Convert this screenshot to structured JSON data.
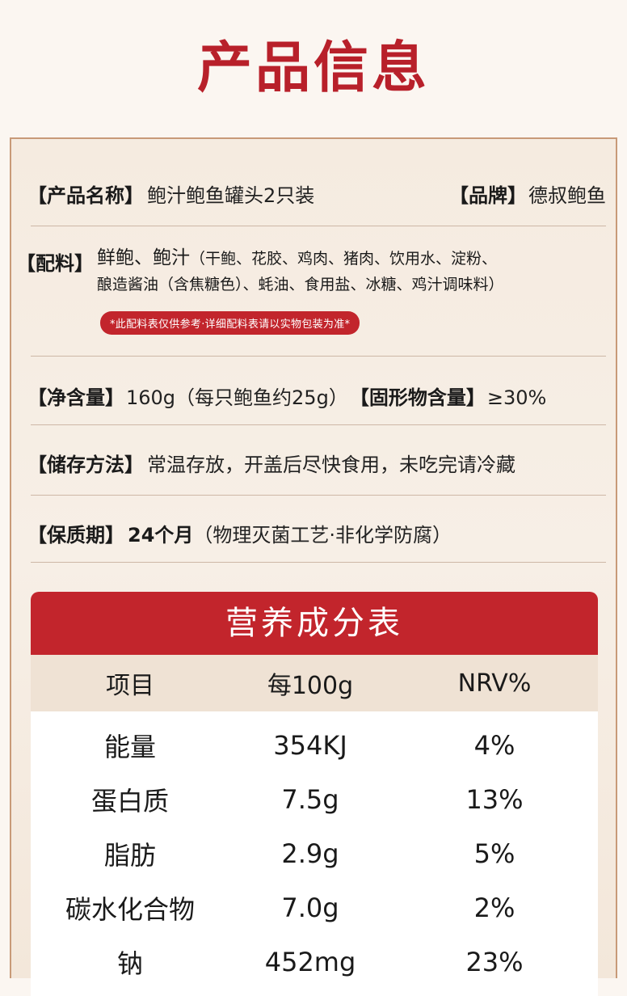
{
  "page_title": "产品信息",
  "product": {
    "name_key": "【产品名称】",
    "name_value": "鲍汁鲍鱼罐头2只装",
    "brand_key": "【品牌】",
    "brand_value": "德叔鲍鱼",
    "ingredients_key": "【配料】",
    "ingredients_main": "鲜鲍、鲍汁",
    "ingredients_line1": "（干鲍、花胶、鸡肉、猪肉、饮用水、淀粉、",
    "ingredients_line2": "酿造酱油（含焦糖色）、蚝油、食用盐、冰糖、鸡汁调味料）",
    "notice": "*此配料表仅供参考·详细配料表请以实物包装为准*",
    "net_key": "【净含量】",
    "net_value": "160g（每只鲍鱼约25g）",
    "solid_key": "【固形物含量】",
    "solid_value": "≥30%",
    "storage_key": "【储存方法】",
    "storage_value": "常温存放，开盖后尽快食用，未吃完请冷藏",
    "shelf_key": "【保质期】",
    "shelf_value_bold": "24个月",
    "shelf_value": "（物理灭菌工艺·非化学防腐）"
  },
  "nutrition": {
    "title": "营养成分表",
    "headers": [
      "项目",
      "每100g",
      "NRV%"
    ],
    "rows": [
      [
        "能量",
        "354KJ",
        "4%"
      ],
      [
        "蛋白质",
        "7.5g",
        "13%"
      ],
      [
        "脂肪",
        "2.9g",
        "5%"
      ],
      [
        "碳水化合物",
        "7.0g",
        "2%"
      ],
      [
        "钠",
        "452mg",
        "23%"
      ]
    ]
  },
  "colors": {
    "accent": "#c2252c",
    "title": "#b8202a",
    "card_bg": "#f5ebe0",
    "header_row_bg": "#efe2d4"
  }
}
